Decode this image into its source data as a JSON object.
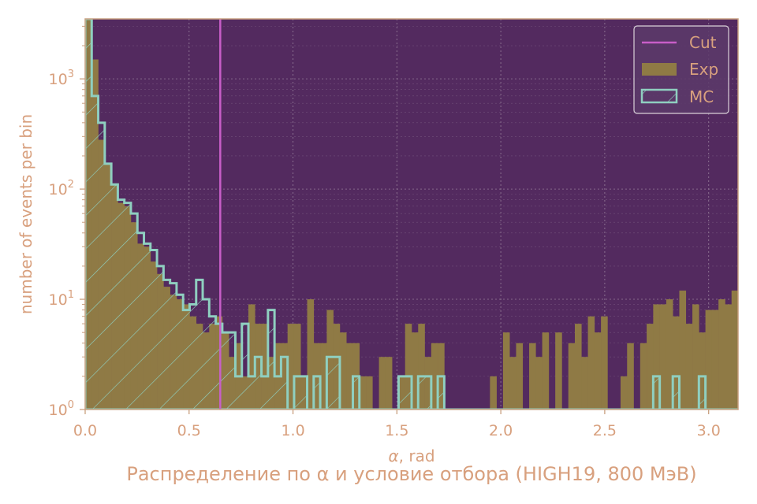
{
  "chart_data": {
    "type": "bar",
    "title": "Распределение по α и условие отбора (HIGH19, 800 МэВ)",
    "xlabel": "α, rad",
    "ylabel": "number of events per bin",
    "xlim": [
      0,
      3.14159
    ],
    "ylim": [
      1,
      3500
    ],
    "yscale": "log",
    "grid": true,
    "legend_position": "top-right",
    "x_ticks": [
      "0.0",
      "0.5",
      "1.0",
      "1.5",
      "2.0",
      "2.5",
      "3.0"
    ],
    "x_tick_values": [
      0,
      0.5,
      1.0,
      1.5,
      2.0,
      2.5,
      3.0
    ],
    "y_ticks": [
      {
        "base": "10",
        "exp": "0",
        "value": 1
      },
      {
        "base": "10",
        "exp": "1",
        "value": 10
      },
      {
        "base": "10",
        "exp": "2",
        "value": 100
      },
      {
        "base": "10",
        "exp": "3",
        "value": 1000
      }
    ],
    "bin_width": 0.0314159,
    "cut": {
      "name": "Cut",
      "x": 0.65,
      "color": "#c85ec8"
    },
    "series": [
      {
        "name": "Exp",
        "style": "filled",
        "color": "#8f7a45",
        "values": [
          3500,
          1500,
          280,
          170,
          110,
          75,
          70,
          50,
          32,
          30,
          22,
          17,
          13,
          11,
          10,
          9,
          7,
          6,
          5,
          6,
          7,
          5,
          3,
          4,
          2,
          9,
          6,
          6,
          3,
          4,
          4,
          6,
          6,
          2,
          10,
          4,
          4,
          8,
          6,
          5,
          4,
          4,
          2,
          2,
          1,
          3,
          3,
          1,
          2,
          6,
          5,
          6,
          3,
          4,
          4,
          1,
          1,
          1,
          1,
          1,
          1,
          1,
          2,
          1,
          5,
          3,
          4,
          1,
          4,
          3,
          5,
          1,
          5,
          1,
          4,
          6,
          3,
          7,
          5,
          7,
          1,
          1,
          2,
          4,
          1,
          4,
          6,
          9,
          9,
          10,
          7,
          12,
          6,
          9,
          5,
          8,
          8,
          10,
          9,
          12,
          7,
          10,
          12,
          6,
          10,
          6,
          7,
          10,
          10,
          12,
          14,
          13,
          8
        ]
      },
      {
        "name": "MC",
        "style": "hatched-step",
        "color": "#8fcfc0",
        "values": [
          3500,
          700,
          400,
          170,
          110,
          80,
          75,
          60,
          40,
          32,
          28,
          20,
          15,
          14,
          11,
          8,
          9,
          15,
          10,
          7,
          6,
          5,
          5,
          2,
          6,
          2,
          3,
          2,
          8,
          2,
          3,
          1,
          2,
          2,
          1,
          2,
          1,
          3,
          3,
          1,
          1,
          2,
          1,
          1,
          1,
          1,
          1,
          1,
          2,
          2,
          1,
          2,
          2,
          1,
          2,
          1,
          1,
          1,
          1,
          1,
          1,
          1,
          1,
          1,
          1,
          1,
          1,
          1,
          1,
          1,
          1,
          1,
          1,
          1,
          1,
          1,
          1,
          1,
          1,
          1,
          1,
          1,
          1,
          1,
          1,
          1,
          1,
          2,
          1,
          1,
          2,
          1,
          1,
          1,
          2,
          1,
          1,
          1,
          1,
          1,
          1,
          1,
          1,
          1,
          1,
          1,
          1,
          1,
          1,
          1,
          1,
          1,
          1
        ]
      }
    ]
  },
  "colors": {
    "plot_background": "#532a5f",
    "axis_frame": "#c9a080",
    "grid": "#8a6f8f",
    "legend_background": "#5c3a6a",
    "legend_border": "#d9d0d8"
  }
}
